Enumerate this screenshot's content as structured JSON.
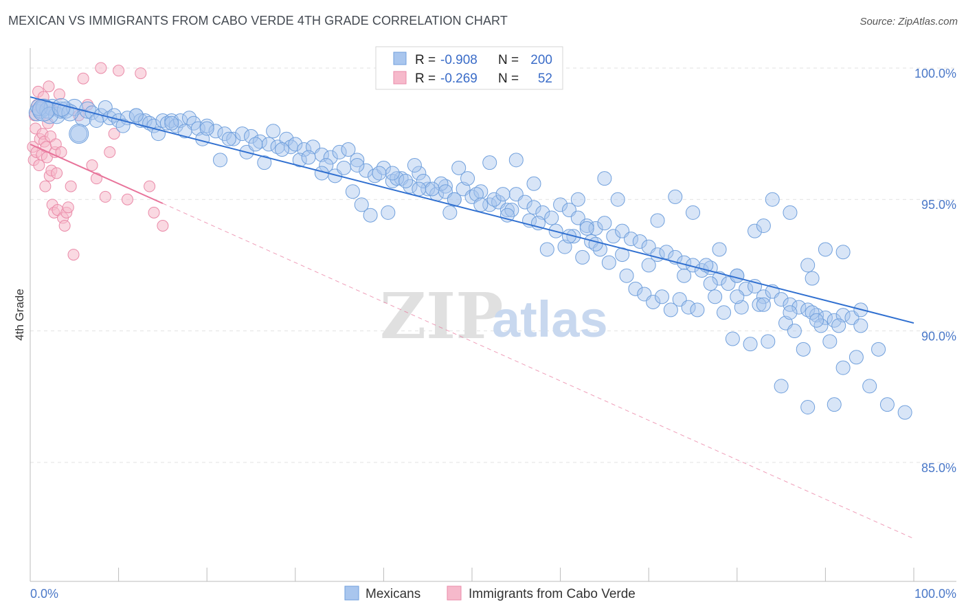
{
  "header": {
    "title": "MEXICAN VS IMMIGRANTS FROM CABO VERDE 4TH GRADE CORRELATION CHART",
    "source": "Source: ZipAtlas.com"
  },
  "watermark": {
    "zip": "ZIP",
    "atlas": "atlas"
  },
  "colors": {
    "blue_fill": "#a9c6ee",
    "blue_stroke": "#6f9fdc",
    "blue_line": "#2f6fd0",
    "pink_fill": "#f6b9cb",
    "pink_stroke": "#ea8aa8",
    "pink_line": "#e8739a",
    "axis_label": "#4a78c8",
    "grid": "#e2e2e2"
  },
  "legend_box": {
    "rows": [
      {
        "r_label": "R = ",
        "r_value": "-0.908",
        "n_label": "N = ",
        "n_value": "200"
      },
      {
        "r_label": "R = ",
        "r_value": "-0.269",
        "n_label": "N = ",
        "n_value": "52"
      }
    ]
  },
  "chart_data": {
    "type": "scatter",
    "title": "MEXICAN VS IMMIGRANTS FROM CABO VERDE 4TH GRADE CORRELATION CHART",
    "xlabel": "",
    "ylabel": "4th Grade",
    "xlim": [
      0,
      100
    ],
    "ylim": [
      80.5,
      100.6
    ],
    "y_ticks": [
      85,
      90,
      95,
      100
    ],
    "y_tick_labels": [
      "85.0%",
      "90.0%",
      "95.0%",
      "100.0%"
    ],
    "x_tick_labels": [
      "0.0%",
      "100.0%"
    ],
    "grid": true,
    "legend_position": "bottom-center",
    "series": [
      {
        "name": "Mexicans",
        "color": "#a9c6ee",
        "trend": {
          "x": [
            0,
            100
          ],
          "y": [
            98.9,
            90.3
          ],
          "style": "solid"
        },
        "points": [
          [
            0.8,
            98.3
          ],
          [
            1.2,
            98.4
          ],
          [
            1.6,
            98.5
          ],
          [
            2,
            98.4
          ],
          [
            2.5,
            98.5
          ],
          [
            3,
            98.2
          ],
          [
            3.5,
            98.4
          ],
          [
            4,
            98.4
          ],
          [
            5,
            98.5
          ],
          [
            5.5,
            97.5
          ],
          [
            6,
            98.1
          ],
          [
            6.5,
            98.4
          ],
          [
            7,
            98.3
          ],
          [
            8,
            98.2
          ],
          [
            8.5,
            98.5
          ],
          [
            9,
            98.1
          ],
          [
            9.5,
            98.2
          ],
          [
            10,
            98.0
          ],
          [
            11,
            98.1
          ],
          [
            12,
            98.2
          ],
          [
            12.5,
            98.0
          ],
          [
            13,
            98.0
          ],
          [
            13.5,
            97.9
          ],
          [
            14,
            97.8
          ],
          [
            15,
            98.0
          ],
          [
            15.5,
            97.9
          ],
          [
            16,
            98.0
          ],
          [
            16.5,
            97.8
          ],
          [
            17,
            98.0
          ],
          [
            18,
            98.1
          ],
          [
            18.5,
            97.9
          ],
          [
            19,
            97.7
          ],
          [
            20,
            97.8
          ],
          [
            21,
            97.6
          ],
          [
            22,
            97.5
          ],
          [
            23,
            97.3
          ],
          [
            24,
            97.5
          ],
          [
            25,
            97.4
          ],
          [
            26,
            97.2
          ],
          [
            27,
            97.1
          ],
          [
            28,
            97.0
          ],
          [
            29,
            97.3
          ],
          [
            29.5,
            97.0
          ],
          [
            30,
            97.1
          ],
          [
            31,
            96.9
          ],
          [
            32,
            97.0
          ],
          [
            33,
            96.7
          ],
          [
            34,
            96.6
          ],
          [
            35,
            96.8
          ],
          [
            36,
            96.9
          ],
          [
            37,
            96.5
          ],
          [
            38,
            96.1
          ],
          [
            39,
            95.9
          ],
          [
            40,
            96.2
          ],
          [
            41,
            95.7
          ],
          [
            42,
            95.8
          ],
          [
            43,
            95.5
          ],
          [
            44,
            96.0
          ],
          [
            45,
            95.4
          ],
          [
            46,
            95.2
          ],
          [
            47,
            95.5
          ],
          [
            48,
            95.0
          ],
          [
            49,
            95.4
          ],
          [
            50,
            95.1
          ],
          [
            51,
            95.3
          ],
          [
            52,
            94.8
          ],
          [
            53,
            94.9
          ],
          [
            54,
            94.6
          ],
          [
            55,
            95.2
          ],
          [
            56,
            94.9
          ],
          [
            57,
            94.7
          ],
          [
            58,
            94.5
          ],
          [
            59,
            94.3
          ],
          [
            60,
            94.8
          ],
          [
            61,
            94.6
          ],
          [
            62,
            94.3
          ],
          [
            63,
            94.0
          ],
          [
            64,
            93.9
          ],
          [
            65,
            94.1
          ],
          [
            66,
            93.6
          ],
          [
            67,
            93.8
          ],
          [
            68,
            93.5
          ],
          [
            69,
            93.4
          ],
          [
            70,
            93.2
          ],
          [
            71,
            92.9
          ],
          [
            72,
            93.0
          ],
          [
            73,
            92.8
          ],
          [
            74,
            92.6
          ],
          [
            75,
            92.5
          ],
          [
            76,
            92.3
          ],
          [
            77,
            92.4
          ],
          [
            78,
            92.0
          ],
          [
            79,
            91.8
          ],
          [
            80,
            92.1
          ],
          [
            81,
            91.6
          ],
          [
            82,
            91.7
          ],
          [
            83,
            91.3
          ],
          [
            84,
            91.5
          ],
          [
            85,
            91.2
          ],
          [
            86,
            91.0
          ],
          [
            87,
            90.9
          ],
          [
            88,
            90.8
          ],
          [
            89,
            90.6
          ],
          [
            90,
            90.5
          ],
          [
            91,
            90.4
          ],
          [
            92,
            90.6
          ],
          [
            93,
            90.5
          ],
          [
            94,
            90.2
          ],
          [
            1,
            98.5
          ],
          [
            2.2,
            98.2
          ],
          [
            4.5,
            98.3
          ],
          [
            7.5,
            98.0
          ],
          [
            10.5,
            97.8
          ],
          [
            14.5,
            97.5
          ],
          [
            17.5,
            97.6
          ],
          [
            19.5,
            97.3
          ],
          [
            21.5,
            96.5
          ],
          [
            24.5,
            96.8
          ],
          [
            26.5,
            96.4
          ],
          [
            27.5,
            97.6
          ],
          [
            30.5,
            96.5
          ],
          [
            33.5,
            96.3
          ],
          [
            34.5,
            95.9
          ],
          [
            36.5,
            95.3
          ],
          [
            37.5,
            94.8
          ],
          [
            38.5,
            94.4
          ],
          [
            40.5,
            94.5
          ],
          [
            41.5,
            95.8
          ],
          [
            43.5,
            96.3
          ],
          [
            44.5,
            95.7
          ],
          [
            46.5,
            95.6
          ],
          [
            47.5,
            94.5
          ],
          [
            49.5,
            95.8
          ],
          [
            50.5,
            95.2
          ],
          [
            52.5,
            95.0
          ],
          [
            53.5,
            95.2
          ],
          [
            54.5,
            94.6
          ],
          [
            56.5,
            94.2
          ],
          [
            58.5,
            93.1
          ],
          [
            59.5,
            93.8
          ],
          [
            60.5,
            93.2
          ],
          [
            61.5,
            93.6
          ],
          [
            62.5,
            92.8
          ],
          [
            63.5,
            93.4
          ],
          [
            64.5,
            93.1
          ],
          [
            65.5,
            92.6
          ],
          [
            67.5,
            92.1
          ],
          [
            68.5,
            91.6
          ],
          [
            69.5,
            91.4
          ],
          [
            70.5,
            91.1
          ],
          [
            71.5,
            91.3
          ],
          [
            72.5,
            90.8
          ],
          [
            73.5,
            91.2
          ],
          [
            74.5,
            90.9
          ],
          [
            75.5,
            90.8
          ],
          [
            76.5,
            92.5
          ],
          [
            77.5,
            91.3
          ],
          [
            78.5,
            90.7
          ],
          [
            79.5,
            89.7
          ],
          [
            80.5,
            90.9
          ],
          [
            81.5,
            89.5
          ],
          [
            82.5,
            91.0
          ],
          [
            83.5,
            89.6
          ],
          [
            85.5,
            90.3
          ],
          [
            86.5,
            90.0
          ],
          [
            87.5,
            89.3
          ],
          [
            88.5,
            90.7
          ],
          [
            89.5,
            90.2
          ],
          [
            90.5,
            89.6
          ],
          [
            91.5,
            90.2
          ],
          [
            93.5,
            89.0
          ],
          [
            33,
            96.0
          ],
          [
            37,
            96.3
          ],
          [
            41,
            96.0
          ],
          [
            44,
            95.4
          ],
          [
            47,
            95.3
          ],
          [
            48.5,
            96.2
          ],
          [
            52,
            96.4
          ],
          [
            55,
            96.5
          ],
          [
            57,
            95.6
          ],
          [
            62,
            95.0
          ],
          [
            63,
            93.9
          ],
          [
            65,
            95.8
          ],
          [
            66.5,
            95.0
          ],
          [
            71,
            94.2
          ],
          [
            73,
            95.1
          ],
          [
            75,
            94.5
          ],
          [
            78,
            93.1
          ],
          [
            80,
            92.1
          ],
          [
            82,
            93.8
          ],
          [
            83,
            94.0
          ],
          [
            84,
            95.0
          ],
          [
            86,
            94.5
          ],
          [
            88,
            92.5
          ],
          [
            88.5,
            92.0
          ],
          [
            90,
            93.1
          ],
          [
            92,
            93.0
          ],
          [
            94,
            90.8
          ],
          [
            12,
            98.2
          ],
          [
            16,
            97.9
          ],
          [
            20,
            97.7
          ],
          [
            22.5,
            97.3
          ],
          [
            25.5,
            97.1
          ],
          [
            28.5,
            96.9
          ],
          [
            31.5,
            96.6
          ],
          [
            35.5,
            96.2
          ],
          [
            39.5,
            96.0
          ],
          [
            42.5,
            95.7
          ],
          [
            45.5,
            95.4
          ],
          [
            48,
            95.0
          ],
          [
            51,
            94.8
          ],
          [
            54,
            94.4
          ],
          [
            57.5,
            94.1
          ],
          [
            61,
            93.6
          ],
          [
            64,
            93.3
          ],
          [
            67,
            92.9
          ],
          [
            70,
            92.5
          ],
          [
            74,
            92.1
          ],
          [
            77,
            91.8
          ],
          [
            80,
            91.3
          ],
          [
            83,
            91.0
          ],
          [
            86,
            90.7
          ],
          [
            89,
            90.4
          ],
          [
            92,
            88.6
          ],
          [
            95,
            87.9
          ],
          [
            97,
            87.2
          ],
          [
            99,
            86.9
          ],
          [
            85,
            87.9
          ],
          [
            88,
            87.1
          ],
          [
            91,
            87.2
          ],
          [
            96,
            89.3
          ]
        ]
      },
      {
        "name": "Immigrants from Cabo Verde",
        "color": "#f6b9cb",
        "trend": {
          "x": [
            0,
            100
          ],
          "y": [
            97.1,
            82.1
          ],
          "style": "solid-then-dashed",
          "solid_until_x": 15
        },
        "points": [
          [
            0.3,
            97.0
          ],
          [
            0.4,
            96.5
          ],
          [
            0.5,
            98.2
          ],
          [
            0.6,
            97.7
          ],
          [
            0.7,
            96.8
          ],
          [
            0.8,
            98.6
          ],
          [
            0.9,
            99.1
          ],
          [
            1.0,
            96.3
          ],
          [
            1.1,
            97.3
          ],
          [
            1.2,
            98.5
          ],
          [
            1.3,
            96.7
          ],
          [
            1.4,
            97.5
          ],
          [
            1.5,
            98.9
          ],
          [
            1.6,
            97.2
          ],
          [
            1.7,
            95.5
          ],
          [
            1.8,
            97.0
          ],
          [
            1.9,
            96.6
          ],
          [
            2.0,
            97.9
          ],
          [
            2.1,
            99.3
          ],
          [
            2.2,
            95.9
          ],
          [
            2.3,
            97.4
          ],
          [
            2.4,
            96.1
          ],
          [
            2.5,
            94.8
          ],
          [
            2.6,
            98.4
          ],
          [
            2.7,
            94.5
          ],
          [
            2.8,
            96.8
          ],
          [
            2.9,
            97.1
          ],
          [
            3.0,
            96.0
          ],
          [
            3.1,
            94.6
          ],
          [
            3.3,
            99.0
          ],
          [
            3.5,
            96.8
          ],
          [
            3.7,
            94.3
          ],
          [
            3.9,
            94.0
          ],
          [
            4.1,
            94.5
          ],
          [
            4.3,
            94.7
          ],
          [
            4.6,
            95.5
          ],
          [
            4.9,
            92.9
          ],
          [
            6.0,
            99.6
          ],
          [
            7.0,
            96.3
          ],
          [
            7.5,
            95.8
          ],
          [
            8.5,
            95.1
          ],
          [
            9.0,
            96.8
          ],
          [
            10.0,
            99.9
          ],
          [
            11.0,
            95.0
          ],
          [
            12.5,
            99.8
          ],
          [
            13.5,
            95.5
          ],
          [
            14.0,
            94.5
          ],
          [
            15.0,
            94.0
          ],
          [
            6.5,
            98.6
          ],
          [
            9.5,
            97.5
          ],
          [
            5.5,
            98.2
          ],
          [
            8.0,
            100.0
          ]
        ]
      }
    ]
  },
  "bottom_legend": {
    "items": [
      "Mexicans",
      "Immigrants from Cabo Verde"
    ]
  }
}
